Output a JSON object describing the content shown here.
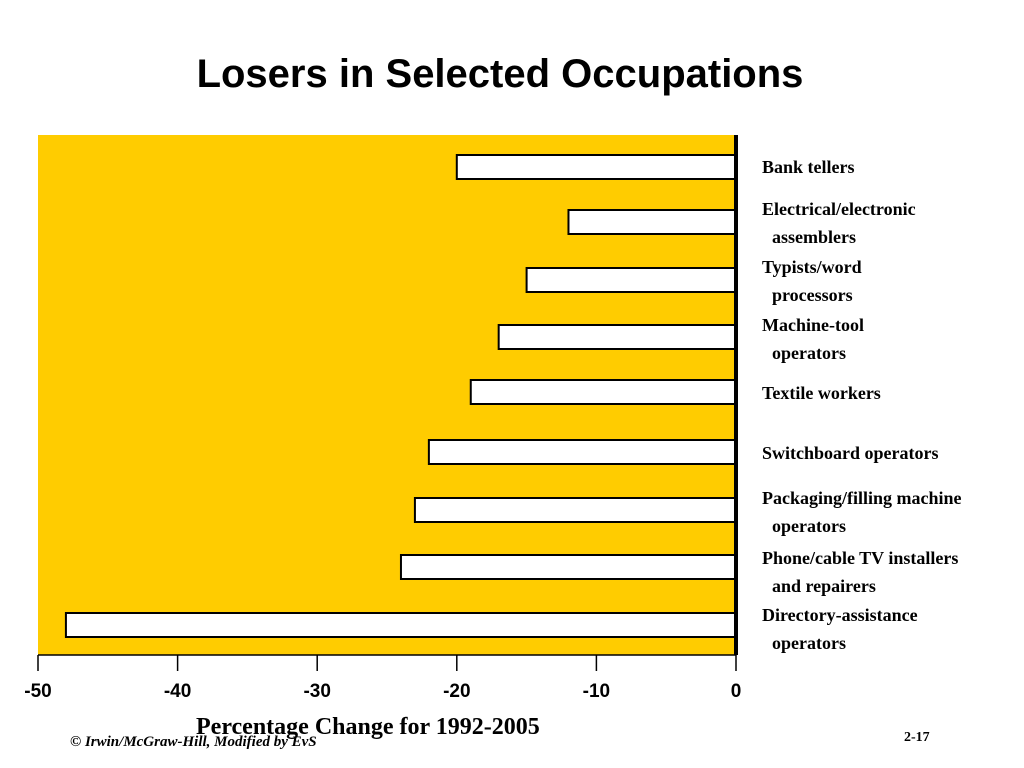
{
  "slide": {
    "title": "Losers in Selected Occupations",
    "footer_left": "© Irwin/McGraw-Hill, Modified by EvS",
    "page_number": "2-17"
  },
  "chart_data": {
    "type": "bar",
    "orientation": "horizontal",
    "title": "Losers in Selected Occupations",
    "xlabel": "Percentage Change for 1992-2005",
    "ylabel": "",
    "xlim": [
      -50,
      0
    ],
    "x_ticks": [
      -50,
      -40,
      -30,
      -20,
      -10,
      0
    ],
    "x_tick_labels": [
      "-50",
      "-40",
      "-30",
      "-20",
      "-10",
      "0"
    ],
    "categories": [
      "Bank tellers",
      "Electrical/electronic assemblers",
      "Typists/word processors",
      "Machine-tool operators",
      "Textile workers",
      "Switchboard operators",
      "Packaging/filling machine operators",
      "Phone/cable TV installers and repairers",
      "Directory-assistance operators"
    ],
    "category_label_lines": [
      [
        "Bank tellers"
      ],
      [
        "Electrical/electronic",
        "assemblers"
      ],
      [
        "Typists/word",
        "processors"
      ],
      [
        "Machine-tool",
        "operators"
      ],
      [
        "Textile workers"
      ],
      [
        "Switchboard operators"
      ],
      [
        "Packaging/filling machine",
        "operators"
      ],
      [
        "Phone/cable TV installers",
        "and repairers"
      ],
      [
        "Directory-assistance",
        "operators"
      ]
    ],
    "values": [
      -20,
      -12,
      -15,
      -17,
      -19,
      -22,
      -23,
      -24,
      -48
    ],
    "grid": false,
    "legend": "none",
    "colors": {
      "plot_background": "#FFCC00",
      "bar_fill": "#FFFFFF",
      "bar_stroke": "#000000"
    }
  }
}
